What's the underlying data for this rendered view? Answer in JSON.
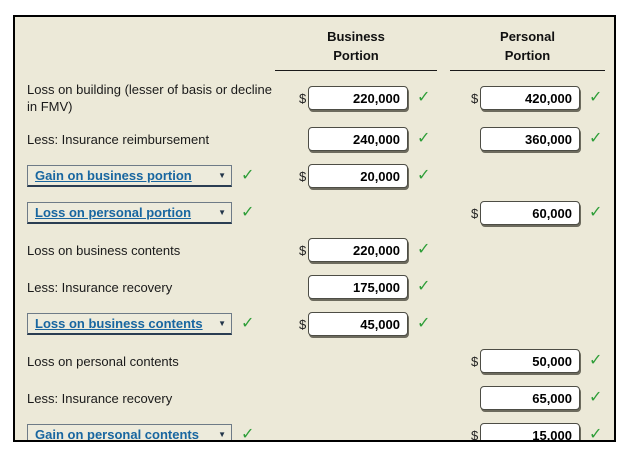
{
  "header": {
    "business": {
      "line1": "Business",
      "line2": "Portion"
    },
    "personal": {
      "line1": "Personal",
      "line2": "Portion"
    }
  },
  "icons": {
    "check": "✓",
    "dropdown_arrow": "▼",
    "dollar": "$"
  },
  "colors": {
    "panel_bg": "#ECE9D8",
    "panel_border": "#000000",
    "check_green": "#2E9E38",
    "dropdown_text_blue": "#1866A0",
    "dropdown_border_dark": "#2A3D52",
    "input_border": "#4D4D45",
    "input_shadow": "#6D6B5E"
  },
  "rows": [
    {
      "kind": "label",
      "label": "Loss on building (lesser of basis or decline in FMV)",
      "business": {
        "dollar": true,
        "value": "220,000",
        "check": true
      },
      "personal": {
        "dollar": true,
        "value": "420,000",
        "check": true
      }
    },
    {
      "kind": "label",
      "label": "Less: Insurance reimbursement",
      "business": {
        "dollar": false,
        "value": "240,000",
        "check": true
      },
      "personal": {
        "dollar": false,
        "value": "360,000",
        "check": true
      }
    },
    {
      "kind": "dropdown",
      "label": "Gain on business portion",
      "label_check": true,
      "business": {
        "dollar": true,
        "value": "20,000",
        "check": true
      },
      "personal": null
    },
    {
      "kind": "dropdown",
      "label": "Loss on personal portion",
      "label_check": true,
      "business": null,
      "personal": {
        "dollar": true,
        "value": "60,000",
        "check": true
      }
    },
    {
      "kind": "label",
      "label": "Loss on business contents",
      "business": {
        "dollar": true,
        "value": "220,000",
        "check": true
      },
      "personal": null
    },
    {
      "kind": "label",
      "label": "Less: Insurance recovery",
      "business": {
        "dollar": false,
        "value": "175,000",
        "check": true
      },
      "personal": null
    },
    {
      "kind": "dropdown",
      "label": "Loss on business contents",
      "label_check": true,
      "business": {
        "dollar": true,
        "value": "45,000",
        "check": true
      },
      "personal": null
    },
    {
      "kind": "label",
      "label": "Loss on personal contents",
      "business": null,
      "personal": {
        "dollar": true,
        "value": "50,000",
        "check": true
      }
    },
    {
      "kind": "label",
      "label": "Less: Insurance recovery",
      "business": null,
      "personal": {
        "dollar": false,
        "value": "65,000",
        "check": true
      }
    },
    {
      "kind": "dropdown",
      "label": "Gain on personal contents",
      "label_check": true,
      "business": null,
      "personal": {
        "dollar": true,
        "value": "15,000",
        "check": true
      }
    }
  ]
}
